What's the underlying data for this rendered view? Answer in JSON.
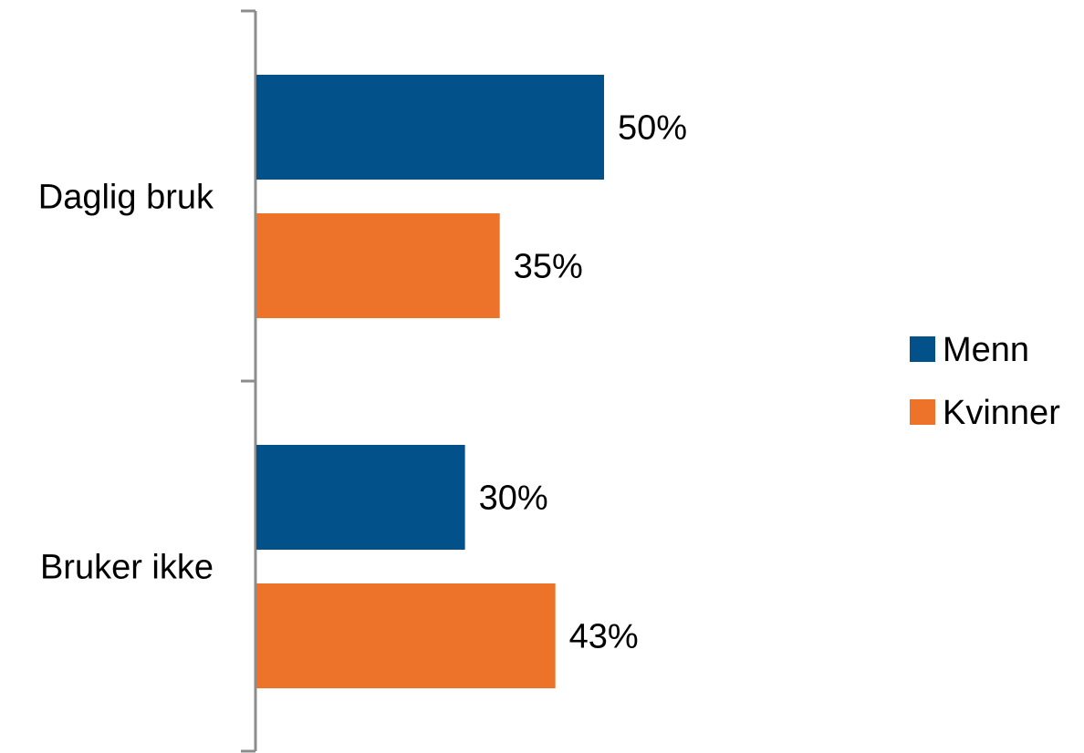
{
  "chart_data": {
    "type": "bar",
    "orientation": "horizontal",
    "categories": [
      "Daglig bruk",
      "Bruker ikke"
    ],
    "series": [
      {
        "name": "Menn",
        "values": [
          50,
          30
        ],
        "labels": [
          "50%",
          "30%"
        ],
        "color": "#03518A"
      },
      {
        "name": "Kvinner",
        "values": [
          35,
          43
        ],
        "labels": [
          "35%",
          "43%"
        ],
        "color": "#ED722A"
      }
    ],
    "unit": "%",
    "xlim": [
      0,
      100
    ],
    "grid": false,
    "legend_position": "right",
    "axis_color": "#8C8C8C",
    "title": "",
    "xlabel": "",
    "ylabel": ""
  }
}
